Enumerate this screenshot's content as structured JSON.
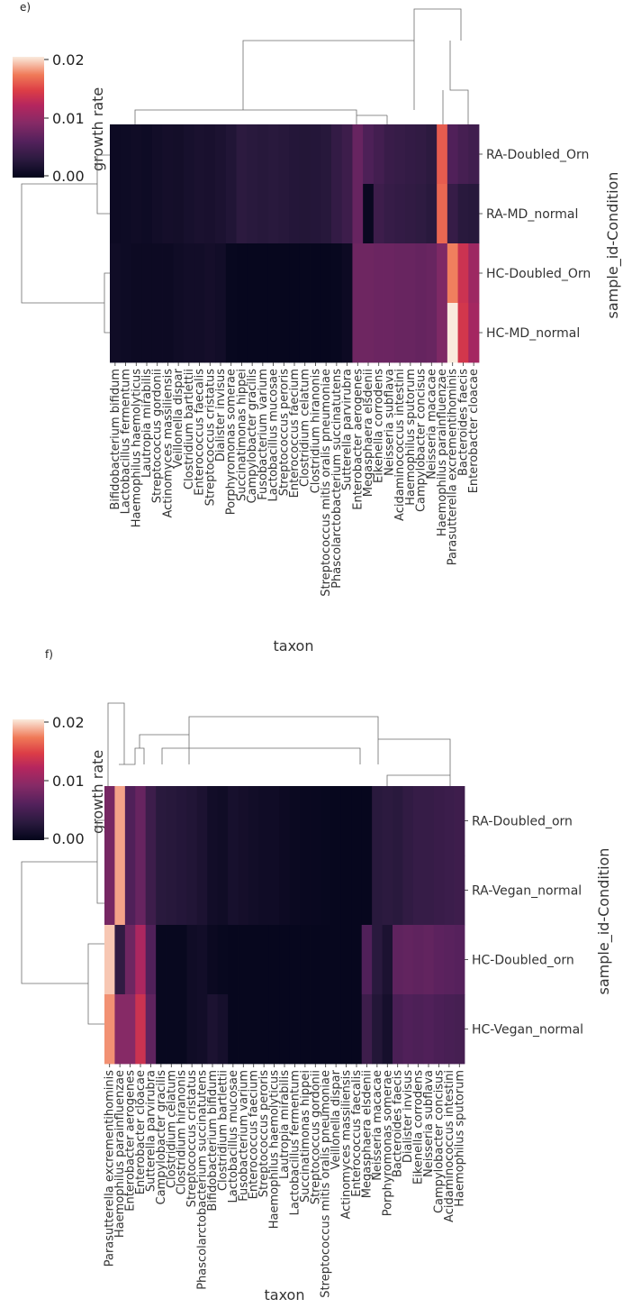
{
  "chart_data": [
    {
      "type": "heatmap",
      "panel_label": "e)",
      "rows": [
        "RA-Doubled_Orn",
        "RA-MD_normal",
        "HC-Doubled_Orn",
        "HC-MD_normal"
      ],
      "columns": [
        "Bifidobacterium bifidum",
        "Lactobacillus fermentum",
        "Haemophilus haemolyticus",
        "Lautropia mirabilis",
        "Streptococcus gordonii",
        "Actinomyces massiliensis",
        "Veillonella dispar",
        "Clostridium bartlettii",
        "Enterococcus faecalis",
        "Streptococcus cristatus",
        "Dialister invisus",
        "Porphyromonas somerae",
        "Succinatimonas hippei",
        "Campylobacter gracilis",
        "Fusobacterium varium",
        "Lactobacillus mucosae",
        "Streptococcus peroris",
        "Enterococcus faecium",
        "Clostridium celatum",
        "Clostridium hiranonis",
        "Streptococcus mitis oralis pneumoniae",
        "Phascolarctobacterium succinatutens",
        "Sutterella parvirubra",
        "Enterobacter aerogenes",
        "Megasphaera elsdenii",
        "Eikenella corrodens",
        "Neisseria subflava",
        "Acidaminococcus intestini",
        "Haemophilus sputorum",
        "Campylobacter concisus",
        "Neisseria macacae",
        "Haemophilus parainfluenzae",
        "Parasutterella excrementihominis",
        "Bacteroides faecis",
        "Enterobacter cloacae"
      ],
      "values": [
        [
          0.0008,
          0.0009,
          0.001,
          0.0009,
          0.0012,
          0.0014,
          0.0013,
          0.0016,
          0.0018,
          0.0017,
          0.002,
          0.0024,
          0.0032,
          0.003,
          0.0028,
          0.003,
          0.0028,
          0.0026,
          0.0025,
          0.0026,
          0.0028,
          0.0038,
          0.0045,
          0.0075,
          0.0058,
          0.005,
          0.0042,
          0.004,
          0.0038,
          0.0036,
          0.0032,
          0.0165,
          0.006,
          0.0052,
          0.0048
        ],
        [
          0.0008,
          0.0009,
          0.001,
          0.0009,
          0.0012,
          0.0014,
          0.0013,
          0.0016,
          0.0018,
          0.0017,
          0.002,
          0.0024,
          0.0032,
          0.003,
          0.0028,
          0.003,
          0.0028,
          0.0026,
          0.0025,
          0.0026,
          0.0028,
          0.0038,
          0.0045,
          0.0075,
          0.0005,
          0.0045,
          0.004,
          0.0038,
          0.0036,
          0.0034,
          0.003,
          0.017,
          0.004,
          0.003,
          0.0028
        ],
        [
          0.001,
          0.0009,
          0.0008,
          0.0008,
          0.0008,
          0.0008,
          0.001,
          0.0012,
          0.0012,
          0.0014,
          0.0012,
          0.0004,
          0.0003,
          0.0003,
          0.0003,
          0.0003,
          0.0003,
          0.0003,
          0.0003,
          0.0003,
          0.0003,
          0.0004,
          0.0008,
          0.008,
          0.008,
          0.0078,
          0.0078,
          0.0076,
          0.0076,
          0.0074,
          0.0076,
          0.009,
          0.018,
          0.014,
          0.011
        ],
        [
          0.001,
          0.0009,
          0.0008,
          0.0008,
          0.0008,
          0.0008,
          0.001,
          0.0012,
          0.0012,
          0.0014,
          0.0012,
          0.0004,
          0.0003,
          0.0003,
          0.0003,
          0.0003,
          0.0003,
          0.0003,
          0.0003,
          0.0003,
          0.0003,
          0.0004,
          0.0008,
          0.008,
          0.008,
          0.0078,
          0.0078,
          0.0076,
          0.0076,
          0.0074,
          0.0076,
          0.009,
          0.021,
          0.0145,
          0.0115
        ]
      ],
      "xlabel": "taxon",
      "ylabel": "sample_id-Condition",
      "colorbar": {
        "label": "growth rate",
        "ticks": [
          "0.00",
          "0.01",
          "0.02"
        ],
        "range": [
          0,
          0.021
        ]
      }
    },
    {
      "type": "heatmap",
      "panel_label": "f)",
      "rows": [
        "RA-Doubled_orn",
        "RA-Vegan_normal",
        "HC-Doubled_orn",
        "HC-Vegan_normal"
      ],
      "columns": [
        "Parasutterella excrementihominis",
        "Haemophilus parainfluenzae",
        "Enterobacter aerogenes",
        "Enterobacter cloacae",
        "Sutterella parvirubra",
        "Campylobacter gracilis",
        "Clostridium celatum",
        "Clostridium hiranonis",
        "Streptococcus cristatus",
        "Phascolarctobacterium succinatutens",
        "Bifidobacterium bifidum",
        "Clostridium bartlettii",
        "Lactobacillus mucosae",
        "Fusobacterium varium",
        "Enterococcus faecium",
        "Streptococcus peroris",
        "Haemophilus haemolyticus",
        "Lautropia mirabilis",
        "Lactobacillus fermentum",
        "Succinatimonas hippei",
        "Streptococcus gordonii",
        "Streptococcus mitis oralis pneumoniae",
        "Veillonella dispar",
        "Actinomyces massiliensis",
        "Enterococcus faecalis",
        "Megasphaera elsdenii",
        "Neisseria macacae",
        "Porphyromonas somerae",
        "Bacteroides faecis",
        "Dialister invisus",
        "Eikenella corrodens",
        "Neisseria subflava",
        "Campylobacter concisus",
        "Acidaminococcus intestini",
        "Haemophilus sputorum"
      ],
      "values": [
        [
          0.0085,
          0.019,
          0.006,
          0.0075,
          0.0045,
          0.003,
          0.0028,
          0.0026,
          0.0024,
          0.002,
          0.0012,
          0.001,
          0.0016,
          0.0014,
          0.0012,
          0.001,
          0.001,
          0.0008,
          0.0006,
          0.0005,
          0.0005,
          0.0004,
          0.0003,
          0.0003,
          0.0003,
          0.0003,
          0.003,
          0.0032,
          0.003,
          0.0036,
          0.004,
          0.004,
          0.0042,
          0.0044,
          0.0046
        ],
        [
          0.0085,
          0.019,
          0.006,
          0.0075,
          0.0045,
          0.003,
          0.0028,
          0.0026,
          0.0024,
          0.002,
          0.0012,
          0.001,
          0.0016,
          0.0014,
          0.0012,
          0.001,
          0.001,
          0.0008,
          0.0006,
          0.0005,
          0.0005,
          0.0004,
          0.0003,
          0.0003,
          0.0003,
          0.0003,
          0.003,
          0.0032,
          0.003,
          0.0036,
          0.004,
          0.004,
          0.0042,
          0.0044,
          0.0046
        ],
        [
          0.02,
          0.0035,
          0.008,
          0.012,
          0.006,
          0.0004,
          0.0004,
          0.0004,
          0.001,
          0.0012,
          0.0006,
          0.0004,
          0.0003,
          0.0003,
          0.0003,
          0.0003,
          0.0003,
          0.0003,
          0.0003,
          0.0003,
          0.0003,
          0.0003,
          0.0003,
          0.0003,
          0.0003,
          0.006,
          0.003,
          0.002,
          0.007,
          0.0072,
          0.007,
          0.0072,
          0.0068,
          0.0066,
          0.0064
        ],
        [
          0.0185,
          0.0095,
          0.0095,
          0.014,
          0.007,
          0.0004,
          0.0004,
          0.0004,
          0.001,
          0.0012,
          0.002,
          0.0015,
          0.0003,
          0.0003,
          0.0003,
          0.0003,
          0.0003,
          0.0003,
          0.0003,
          0.0003,
          0.0003,
          0.0003,
          0.0003,
          0.0003,
          0.0003,
          0.0045,
          0.0025,
          0.0015,
          0.0055,
          0.006,
          0.0058,
          0.006,
          0.0056,
          0.0054,
          0.0052
        ]
      ],
      "xlabel": "taxon",
      "ylabel": "sample_id-Condition",
      "colorbar": {
        "label": "growth rate",
        "ticks": [
          "0.00",
          "0.01",
          "0.02"
        ],
        "range": [
          0,
          0.021
        ]
      }
    }
  ]
}
